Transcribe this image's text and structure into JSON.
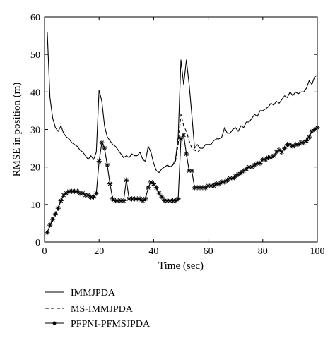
{
  "chart_data": {
    "type": "line",
    "xlabel": "Time (sec)",
    "ylabel": "RMSE in position (m)",
    "xlim": [
      0,
      100
    ],
    "ylim": [
      0,
      60
    ],
    "xticks": [
      0,
      20,
      40,
      60,
      80,
      100
    ],
    "yticks": [
      0,
      10,
      20,
      30,
      40,
      50,
      60
    ],
    "grid": false,
    "legend_position": "below-plot",
    "series": [
      {
        "name": "IMMJPDA",
        "style": "solid",
        "color": "#000000",
        "x": [
          1,
          2,
          3,
          4,
          5,
          6,
          7,
          8,
          9,
          10,
          11,
          12,
          13,
          14,
          15,
          16,
          17,
          18,
          19,
          20,
          21,
          22,
          23,
          24,
          25,
          26,
          27,
          28,
          29,
          30,
          31,
          32,
          33,
          34,
          35,
          36,
          37,
          38,
          39,
          40,
          41,
          42,
          43,
          44,
          45,
          46,
          47,
          48,
          49,
          50,
          51,
          52,
          53,
          54,
          55,
          56,
          57,
          58,
          59,
          60,
          61,
          62,
          63,
          64,
          65,
          66,
          67,
          68,
          69,
          70,
          71,
          72,
          73,
          74,
          75,
          76,
          77,
          78,
          79,
          80,
          81,
          82,
          83,
          84,
          85,
          86,
          87,
          88,
          89,
          90,
          91,
          92,
          93,
          94,
          95,
          96,
          97,
          98,
          99,
          100
        ],
        "y": [
          56,
          38.5,
          33,
          30.5,
          29.5,
          31,
          29,
          28,
          27.5,
          26.5,
          26,
          25.5,
          24.5,
          24,
          23,
          22,
          23,
          22,
          24,
          40.5,
          37.5,
          31,
          28,
          27,
          26,
          25.5,
          24.5,
          23.5,
          22.5,
          23,
          22.5,
          23.5,
          23,
          23,
          24,
          22,
          21.5,
          25.5,
          24,
          21,
          19,
          18.5,
          19.5,
          20,
          20.5,
          20,
          20.5,
          22,
          28,
          48.5,
          42,
          48.5,
          42,
          34,
          25,
          26,
          25,
          25,
          26,
          26,
          26,
          27,
          27.5,
          27.5,
          28,
          30.5,
          29,
          29,
          30,
          30.5,
          29.5,
          31,
          30.5,
          32,
          32,
          33,
          34,
          33.5,
          35,
          35,
          35.5,
          36,
          37,
          36.5,
          37.5,
          37,
          38,
          39,
          38.5,
          40,
          39,
          40,
          39.5,
          40,
          40,
          41,
          43,
          42,
          44,
          44.5
        ]
      },
      {
        "name": "MS-IMMJPDA",
        "style": "dashed",
        "color": "#000000",
        "x": [
          45,
          46,
          47,
          48,
          49,
          50,
          51,
          52,
          53,
          54,
          55,
          56,
          57
        ],
        "y": [
          20.5,
          20,
          20.5,
          21.5,
          26,
          34,
          31,
          29.5,
          27,
          25,
          24.5,
          24,
          24.5
        ]
      },
      {
        "name": "PFPNI-PFMSJPDA",
        "style": "solid-markers",
        "color": "#000000",
        "x": [
          1,
          2,
          3,
          4,
          5,
          6,
          7,
          8,
          9,
          10,
          11,
          12,
          13,
          14,
          15,
          16,
          17,
          18,
          19,
          20,
          21,
          22,
          23,
          24,
          25,
          26,
          27,
          28,
          29,
          30,
          31,
          32,
          33,
          34,
          35,
          36,
          37,
          38,
          39,
          40,
          41,
          42,
          43,
          44,
          45,
          46,
          47,
          48,
          49,
          50,
          51,
          52,
          53,
          54,
          55,
          56,
          57,
          58,
          59,
          60,
          61,
          62,
          63,
          64,
          65,
          66,
          67,
          68,
          69,
          70,
          71,
          72,
          73,
          74,
          75,
          76,
          77,
          78,
          79,
          80,
          81,
          82,
          83,
          84,
          85,
          86,
          87,
          88,
          89,
          90,
          91,
          92,
          93,
          94,
          95,
          96,
          97,
          98,
          99,
          100
        ],
        "y": [
          2.5,
          4.5,
          6,
          7.5,
          9,
          11,
          12.5,
          13,
          13.5,
          13.5,
          13.5,
          13.5,
          13,
          13,
          12.5,
          12.5,
          12,
          12,
          13,
          21.5,
          26.5,
          25,
          20.5,
          15.5,
          11.5,
          11,
          11,
          11,
          11,
          16.5,
          11.5,
          11.5,
          11.5,
          11.5,
          11.5,
          11,
          11.5,
          14.5,
          16,
          15.5,
          14.5,
          13,
          12,
          11,
          11,
          11,
          11,
          11,
          11.5,
          27.5,
          28.5,
          23.5,
          19,
          19,
          14.5,
          14.5,
          14.5,
          14.5,
          14.5,
          15,
          15,
          15,
          15.5,
          15.5,
          16,
          16,
          16.5,
          17,
          17,
          17.5,
          18,
          18.5,
          19,
          19.5,
          20,
          20,
          20.5,
          21,
          21,
          22,
          22,
          22.5,
          22.5,
          23,
          24,
          24.5,
          24,
          25,
          26,
          26,
          25.5,
          26,
          26,
          26.5,
          26.5,
          27,
          28,
          29.5,
          30,
          30.5
        ]
      }
    ]
  }
}
